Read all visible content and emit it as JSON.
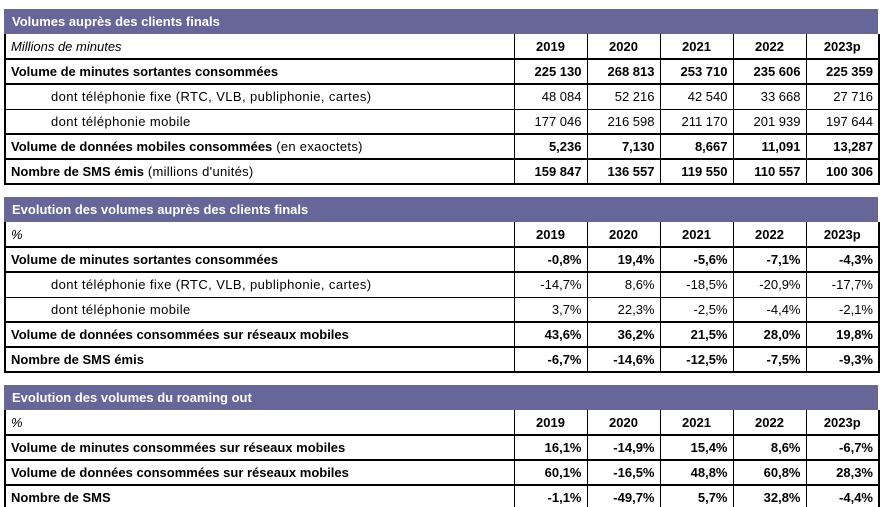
{
  "colors": {
    "title_bar_bg": "#666699",
    "title_bar_text": "#ffffff",
    "table_border": "#000000",
    "body_text": "#000000",
    "row_bg": "#ffffff"
  },
  "years": [
    "2019",
    "2020",
    "2021",
    "2022",
    "2023p"
  ],
  "tables": [
    {
      "title": "Volumes auprès des clients finals",
      "unit": "Millions de minutes",
      "rows": [
        {
          "style": "main",
          "label": "Volume de minutes sortantes consommées",
          "note": "",
          "values": [
            "225 130",
            "268 813",
            "253 710",
            "235 606",
            "225 359"
          ]
        },
        {
          "style": "sub",
          "label": "dont téléphonie fixe (RTC, VLB, publiphonie, cartes)",
          "note": "",
          "values": [
            "48 084",
            "52 216",
            "42 540",
            "33 668",
            "27 716"
          ]
        },
        {
          "style": "sub",
          "label": "dont téléphonie mobile",
          "note": "",
          "values": [
            "177 046",
            "216 598",
            "211 170",
            "201 939",
            "197 644"
          ]
        },
        {
          "style": "main",
          "label": "Volume de données mobiles consommées",
          "note": "(en exaoctets)",
          "values": [
            "5,236",
            "7,130",
            "8,667",
            "11,091",
            "13,287"
          ]
        },
        {
          "style": "main",
          "label": "Nombre de SMS émis",
          "note": "(millions d'unités)",
          "values": [
            "159 847",
            "136 557",
            "119 550",
            "110 557",
            "100 306"
          ]
        }
      ]
    },
    {
      "title": "Evolution des volumes auprès des clients finals",
      "unit": "%",
      "rows": [
        {
          "style": "main",
          "label": "Volume de minutes sortantes consommées",
          "note": "",
          "values": [
            "-0,8%",
            "19,4%",
            "-5,6%",
            "-7,1%",
            "-4,3%"
          ]
        },
        {
          "style": "sub",
          "label": "dont téléphonie fixe (RTC, VLB, publiphonie, cartes)",
          "note": "",
          "values": [
            "-14,7%",
            "8,6%",
            "-18,5%",
            "-20,9%",
            "-17,7%"
          ]
        },
        {
          "style": "sub",
          "label": "dont téléphonie mobile",
          "note": "",
          "values": [
            "3,7%",
            "22,3%",
            "-2,5%",
            "-4,4%",
            "-2,1%"
          ]
        },
        {
          "style": "main",
          "label": "Volume de données consommées sur réseaux mobiles",
          "note": "",
          "values": [
            "43,6%",
            "36,2%",
            "21,5%",
            "28,0%",
            "19,8%"
          ]
        },
        {
          "style": "main",
          "label": "Nombre de SMS émis",
          "note": "",
          "values": [
            "-6,7%",
            "-14,6%",
            "-12,5%",
            "-7,5%",
            "-9,3%"
          ]
        }
      ]
    },
    {
      "title": "Evolution des volumes du roaming out",
      "unit": "%",
      "rows": [
        {
          "style": "main",
          "label": "Volume de minutes consommées sur réseaux mobiles",
          "note": "",
          "values": [
            "16,1%",
            "-14,9%",
            "15,4%",
            "8,6%",
            "-6,7%"
          ]
        },
        {
          "style": "main",
          "label": "Volume de données consommées sur réseaux mobiles",
          "note": "",
          "values": [
            "60,1%",
            "-16,5%",
            "48,8%",
            "60,8%",
            "28,3%"
          ]
        },
        {
          "style": "main",
          "label": "Nombre de SMS",
          "note": "",
          "values": [
            "-1,1%",
            "-49,7%",
            "5,7%",
            "32,8%",
            "-4,4%"
          ]
        }
      ]
    }
  ]
}
